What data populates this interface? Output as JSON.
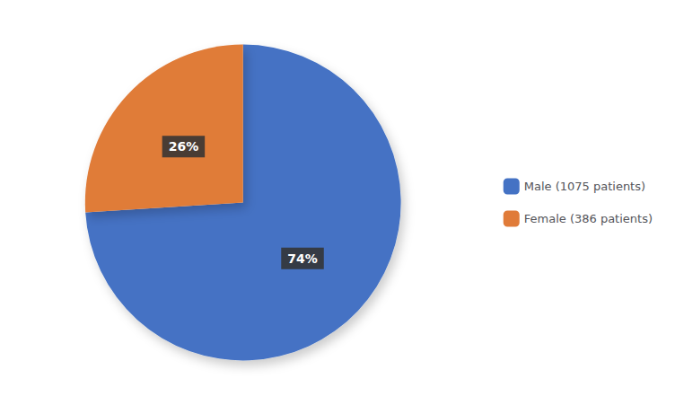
{
  "chart_data": {
    "type": "pie",
    "categories": [
      "Male (1075 patients)",
      "Female (386 patients)"
    ],
    "values": [
      74,
      26
    ],
    "value_labels": [
      "74%",
      "26%"
    ],
    "colors": [
      "#4472C4",
      "#E07B39"
    ],
    "data_labels": true,
    "legend": "right"
  }
}
